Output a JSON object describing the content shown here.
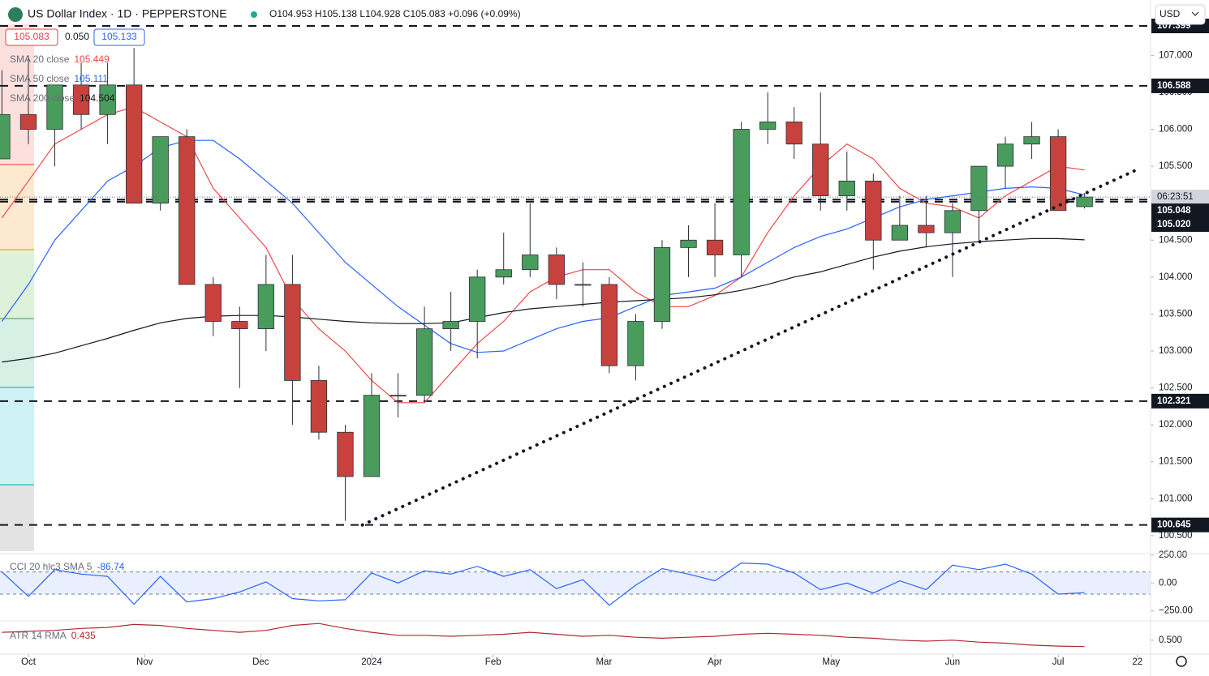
{
  "header": {
    "symbol": "US Dollar Index · 1D · PEPPERSTONE",
    "ohlc": "O104.953 H105.138 L104.928 C105.083 +0.096 (+0.09%)",
    "sell": "105.083",
    "spread": "0.050",
    "buy": "105.133",
    "currency": "USD"
  },
  "chart_data": [
    {
      "type": "candlestick",
      "up_color": "#4a9c5d",
      "down_color": "#c8423d",
      "xlim": [
        -0.075,
        43.5
      ],
      "xticks": [
        {
          "value": 1,
          "label": "Oct"
        },
        {
          "value": 5.4,
          "label": "Nov"
        },
        {
          "value": 9.8,
          "label": "Dec"
        },
        {
          "value": 14,
          "label": "2024"
        },
        {
          "value": 18.6,
          "label": "Feb"
        },
        {
          "value": 22.8,
          "label": "Mar"
        },
        {
          "value": 27,
          "label": "Apr"
        },
        {
          "value": 31.4,
          "label": "May"
        },
        {
          "value": 36,
          "label": "Jun"
        },
        {
          "value": 40,
          "label": "Jul"
        },
        {
          "value": 43,
          "label": "22"
        }
      ],
      "ylim": [
        100.29,
        107.75
      ],
      "yticks": [
        {
          "value": 100.5,
          "label": "100.500"
        },
        {
          "value": 101,
          "label": "101.000"
        },
        {
          "value": 101.5,
          "label": "101.500"
        },
        {
          "value": 102,
          "label": "102.000"
        },
        {
          "value": 102.5,
          "label": "102.500"
        },
        {
          "value": 103,
          "label": "103.000"
        },
        {
          "value": 103.5,
          "label": "103.500"
        },
        {
          "value": 104,
          "label": "104.000"
        },
        {
          "value": 104.5,
          "label": "104.500"
        },
        {
          "value": 105,
          "label": "105.000"
        },
        {
          "value": 105.5,
          "label": "105.500"
        },
        {
          "value": 106,
          "label": "106.000"
        },
        {
          "value": 106.5,
          "label": "106.500"
        },
        {
          "value": 107,
          "label": "107.000"
        }
      ],
      "open": [
        105.6,
        106.2,
        106.0,
        106.6,
        106.2,
        106.6,
        105.0,
        105.9,
        103.9,
        103.4,
        103.3,
        103.9,
        102.6,
        101.9,
        101.3,
        102.4,
        102.4,
        103.3,
        103.4,
        104.0,
        104.1,
        104.3,
        103.9,
        103.9,
        102.8,
        103.4,
        104.4,
        104.5,
        104.3,
        106.0,
        106.1,
        105.8,
        105.1,
        105.3,
        104.5,
        104.7,
        104.6,
        104.9,
        105.5,
        105.8,
        105.9,
        104.953
      ],
      "high": [
        106.8,
        107.0,
        106.6,
        106.9,
        106.9,
        107.1,
        105.9,
        106.0,
        104.0,
        103.6,
        104.3,
        104.3,
        102.8,
        102.0,
        102.7,
        102.7,
        103.6,
        103.8,
        104.1,
        104.6,
        105.0,
        104.4,
        104.2,
        104.0,
        103.5,
        104.5,
        104.7,
        105.0,
        106.1,
        106.5,
        106.3,
        106.5,
        105.7,
        105.4,
        105.1,
        105.1,
        105.0,
        105.5,
        105.9,
        106.1,
        106.0,
        105.138
      ],
      "low": [
        105.6,
        105.8,
        105.5,
        106.0,
        105.8,
        105.0,
        104.9,
        103.9,
        103.2,
        102.5,
        103.0,
        102.0,
        101.8,
        100.7,
        101.3,
        102.1,
        102.3,
        103.0,
        102.9,
        103.9,
        104.0,
        103.7,
        103.6,
        102.7,
        102.6,
        103.3,
        104.0,
        104.0,
        104.0,
        105.8,
        105.6,
        104.9,
        104.9,
        104.1,
        104.5,
        104.4,
        104.0,
        104.5,
        105.2,
        105.6,
        104.9,
        104.928
      ],
      "close": [
        106.2,
        106.0,
        106.6,
        106.2,
        106.6,
        105.0,
        105.9,
        103.9,
        103.4,
        103.3,
        103.9,
        102.6,
        101.9,
        101.3,
        102.4,
        102.4,
        103.3,
        103.4,
        104.0,
        104.1,
        104.3,
        103.9,
        103.9,
        102.8,
        103.4,
        104.4,
        104.5,
        104.3,
        106.0,
        106.1,
        105.8,
        105.1,
        105.3,
        104.5,
        104.7,
        104.6,
        104.9,
        105.5,
        105.8,
        105.9,
        104.9,
        105.083
      ],
      "overlays": [
        {
          "name": "SMA 20 close",
          "color": "#f0474a",
          "values": [
            104.8,
            105.3,
            105.8,
            106.0,
            106.2,
            106.3,
            106.1,
            105.9,
            105.2,
            104.8,
            104.4,
            103.7,
            103.3,
            103.0,
            102.6,
            102.3,
            102.3,
            102.7,
            103.1,
            103.4,
            103.8,
            104.0,
            104.1,
            104.1,
            103.8,
            103.6,
            103.6,
            103.75,
            104.0,
            104.6,
            105.1,
            105.5,
            105.8,
            105.6,
            105.2,
            105.0,
            104.95,
            104.8,
            105.1,
            105.3,
            105.5,
            105.449
          ]
        },
        {
          "name": "SMA 50 close",
          "color": "#2962ff",
          "values": [
            103.4,
            103.9,
            104.5,
            104.9,
            105.3,
            105.5,
            105.75,
            105.85,
            105.85,
            105.6,
            105.3,
            105.0,
            104.6,
            104.2,
            103.9,
            103.6,
            103.35,
            103.1,
            102.98,
            103.0,
            103.15,
            103.3,
            103.4,
            103.45,
            103.6,
            103.75,
            103.8,
            103.85,
            104.0,
            104.2,
            104.4,
            104.55,
            104.65,
            104.8,
            104.95,
            105.05,
            105.1,
            105.15,
            105.2,
            105.22,
            105.2,
            105.111
          ]
        },
        {
          "name": "SMA 200 close",
          "color": "#131722",
          "values": [
            102.85,
            102.9,
            102.97,
            103.07,
            103.17,
            103.28,
            103.38,
            103.44,
            103.47,
            103.48,
            103.48,
            103.46,
            103.43,
            103.4,
            103.38,
            103.37,
            103.37,
            103.38,
            103.45,
            103.52,
            103.57,
            103.6,
            103.63,
            103.66,
            103.68,
            103.7,
            103.72,
            103.76,
            103.82,
            103.9,
            104.0,
            104.07,
            104.17,
            104.27,
            104.35,
            104.41,
            104.45,
            104.48,
            104.5,
            104.52,
            104.52,
            104.504
          ]
        }
      ],
      "levels": [
        107.399,
        106.588,
        105.048,
        {
          "value": 105.02,
          "label": "105.020"
        },
        102.321,
        100.645
      ],
      "last_price": 105.083,
      "countdown": "06:23:51",
      "trendline": {
        "start": {
          "x": 13.65,
          "y": 100.645
        },
        "end": {
          "x": 42.9,
          "y": 105.44
        }
      },
      "grid": false
    },
    {
      "type": "line",
      "name": "CCI 20 hlc3 SMA 5",
      "color": "#2962ff",
      "ylim": [
        -333,
        264.5
      ],
      "yticks": [
        {
          "value": 250,
          "label": "250.00"
        },
        {
          "value": 0,
          "label": "0.00"
        },
        {
          "value": -250,
          "label": "−250.00"
        }
      ],
      "band": [
        -100,
        100
      ],
      "values": [
        100,
        -120,
        120,
        80,
        60,
        -190,
        60,
        -170,
        -140,
        -80,
        10,
        -140,
        -160,
        -150,
        90,
        0,
        110,
        80,
        150,
        60,
        120,
        -50,
        30,
        -200,
        -20,
        130,
        80,
        20,
        180,
        170,
        90,
        -60,
        0,
        -90,
        20,
        -60,
        160,
        120,
        170,
        80,
        -100,
        -86.74
      ]
    },
    {
      "type": "line",
      "name": "ATR 14 RMA",
      "color": "#b22833",
      "ylim": [
        0.35,
        0.68
      ],
      "yticks": [
        {
          "value": 0.5,
          "label": "0.500"
        }
      ],
      "values": [
        0.58,
        0.59,
        0.6,
        0.62,
        0.63,
        0.66,
        0.65,
        0.62,
        0.6,
        0.58,
        0.6,
        0.65,
        0.67,
        0.62,
        0.58,
        0.55,
        0.55,
        0.54,
        0.55,
        0.56,
        0.58,
        0.56,
        0.54,
        0.55,
        0.53,
        0.52,
        0.53,
        0.54,
        0.56,
        0.57,
        0.56,
        0.55,
        0.53,
        0.52,
        0.5,
        0.49,
        0.5,
        0.48,
        0.47,
        0.45,
        0.44,
        0.435
      ]
    }
  ]
}
